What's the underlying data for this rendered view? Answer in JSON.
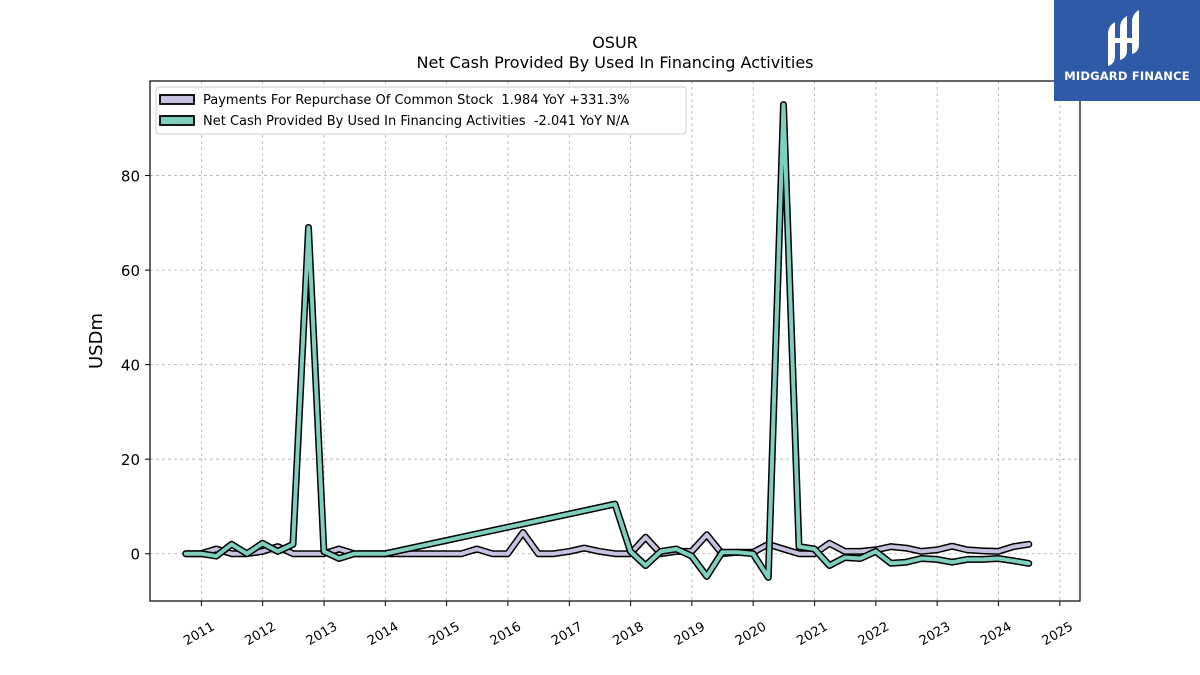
{
  "chart_data": {
    "type": "line",
    "title": "OSUR",
    "subtitle": "Net Cash Provided By Used In Financing Activities",
    "ylabel": "USDm",
    "xlabel": "",
    "xlim": [
      "2010-03-01",
      "2025-05-01"
    ],
    "ylim": [
      -10,
      100
    ],
    "x_ticks": [
      "2011",
      "2012",
      "2013",
      "2014",
      "2015",
      "2016",
      "2017",
      "2018",
      "2019",
      "2020",
      "2021",
      "2022",
      "2023",
      "2024",
      "2025"
    ],
    "y_ticks": [
      0,
      20,
      40,
      60,
      80
    ],
    "grid": true,
    "legend_position": "top-left",
    "series": [
      {
        "name": "Payments For Repurchase Of Common Stock  1.984 YoY +331.3%",
        "color": "#c6c3e1",
        "points": [
          [
            "2010-09-30",
            0.0
          ],
          [
            "2010-12-31",
            0.0
          ],
          [
            "2011-03-31",
            1.0
          ],
          [
            "2011-06-30",
            0.0
          ],
          [
            "2011-09-30",
            0.0
          ],
          [
            "2011-12-31",
            0.5
          ],
          [
            "2012-03-31",
            1.5
          ],
          [
            "2012-06-30",
            0.0
          ],
          [
            "2012-09-30",
            0.0
          ],
          [
            "2012-12-31",
            0.0
          ],
          [
            "2013-03-31",
            1.0
          ],
          [
            "2013-06-30",
            0.0
          ],
          [
            "2013-12-31",
            0.0
          ],
          [
            "2014-12-31",
            0.0
          ],
          [
            "2015-03-31",
            0.0
          ],
          [
            "2015-06-30",
            1.0
          ],
          [
            "2015-09-30",
            0.0
          ],
          [
            "2015-12-31",
            0.0
          ],
          [
            "2016-03-31",
            4.5
          ],
          [
            "2016-06-30",
            0.0
          ],
          [
            "2016-09-30",
            0.0
          ],
          [
            "2016-12-31",
            0.5
          ],
          [
            "2017-03-31",
            1.2
          ],
          [
            "2017-06-30",
            0.5
          ],
          [
            "2017-09-30",
            0.0
          ],
          [
            "2017-12-31",
            0.0
          ],
          [
            "2018-03-31",
            3.5
          ],
          [
            "2018-06-30",
            0.0
          ],
          [
            "2018-09-30",
            0.5
          ],
          [
            "2018-12-31",
            0.5
          ],
          [
            "2019-03-31",
            4.0
          ],
          [
            "2019-06-30",
            0.0
          ],
          [
            "2019-09-30",
            0.3
          ],
          [
            "2019-12-31",
            0.3
          ],
          [
            "2020-03-31",
            2.0
          ],
          [
            "2020-06-30",
            1.0
          ],
          [
            "2020-09-30",
            0.0
          ],
          [
            "2020-12-31",
            0.0
          ],
          [
            "2021-03-31",
            2.2
          ],
          [
            "2021-06-30",
            0.5
          ],
          [
            "2021-09-30",
            0.5
          ],
          [
            "2021-12-31",
            0.8
          ],
          [
            "2022-03-31",
            1.5
          ],
          [
            "2022-06-30",
            1.2
          ],
          [
            "2022-09-30",
            0.5
          ],
          [
            "2022-12-31",
            0.8
          ],
          [
            "2023-03-31",
            1.6
          ],
          [
            "2023-06-30",
            0.8
          ],
          [
            "2023-09-30",
            0.6
          ],
          [
            "2023-12-31",
            0.5
          ],
          [
            "2024-03-31",
            1.5
          ],
          [
            "2024-06-30",
            1.984
          ]
        ]
      },
      {
        "name": "Net Cash Provided By Used In Financing Activities  -2.041 YoY N/A",
        "color": "#7fcfbf",
        "points": [
          [
            "2010-09-30",
            0.0
          ],
          [
            "2010-12-31",
            0.0
          ],
          [
            "2011-03-31",
            -0.5
          ],
          [
            "2011-06-30",
            2.0
          ],
          [
            "2011-09-30",
            0.0
          ],
          [
            "2011-12-31",
            2.2
          ],
          [
            "2012-03-31",
            0.5
          ],
          [
            "2012-06-30",
            2.0
          ],
          [
            "2012-09-30",
            69.0
          ],
          [
            "2012-12-31",
            0.5
          ],
          [
            "2013-03-31",
            -1.0
          ],
          [
            "2013-06-30",
            0.0
          ],
          [
            "2013-12-31",
            0.0
          ],
          [
            "2017-09-30",
            10.5
          ],
          [
            "2017-12-31",
            0.5
          ],
          [
            "2018-03-31",
            -2.5
          ],
          [
            "2018-06-30",
            0.5
          ],
          [
            "2018-09-30",
            1.0
          ],
          [
            "2018-12-31",
            -0.5
          ],
          [
            "2019-03-31",
            -4.8
          ],
          [
            "2019-06-30",
            0.3
          ],
          [
            "2019-09-30",
            0.3
          ],
          [
            "2019-12-31",
            0.0
          ],
          [
            "2020-03-31",
            -5.0
          ],
          [
            "2020-06-30",
            95.0
          ],
          [
            "2020-09-30",
            1.5
          ],
          [
            "2020-12-31",
            1.0
          ],
          [
            "2021-03-31",
            -2.5
          ],
          [
            "2021-06-30",
            -0.8
          ],
          [
            "2021-09-30",
            -1.0
          ],
          [
            "2021-12-31",
            0.5
          ],
          [
            "2022-03-31",
            -2.0
          ],
          [
            "2022-06-30",
            -1.8
          ],
          [
            "2022-09-30",
            -1.0
          ],
          [
            "2022-12-31",
            -1.2
          ],
          [
            "2023-03-31",
            -1.8
          ],
          [
            "2023-06-30",
            -1.2
          ],
          [
            "2023-09-30",
            -1.2
          ],
          [
            "2023-12-31",
            -1.0
          ],
          [
            "2024-03-31",
            -1.5
          ],
          [
            "2024-06-30",
            -2.041
          ]
        ]
      }
    ]
  },
  "logo": {
    "text": "MIDGARD FINANCE",
    "bg_color": "#2f5aa8"
  }
}
